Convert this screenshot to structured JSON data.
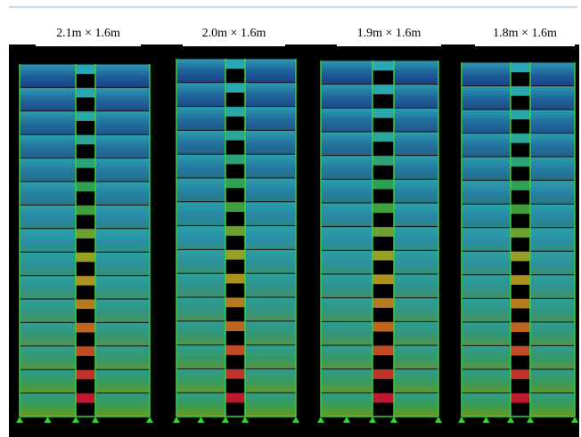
{
  "panels": [
    {
      "label": "2.1m × 1.6m"
    },
    {
      "label": "2.0m × 1.6m"
    },
    {
      "label": "1.9m × 1.6m"
    },
    {
      "label": "1.8m × 1.6m"
    }
  ]
}
